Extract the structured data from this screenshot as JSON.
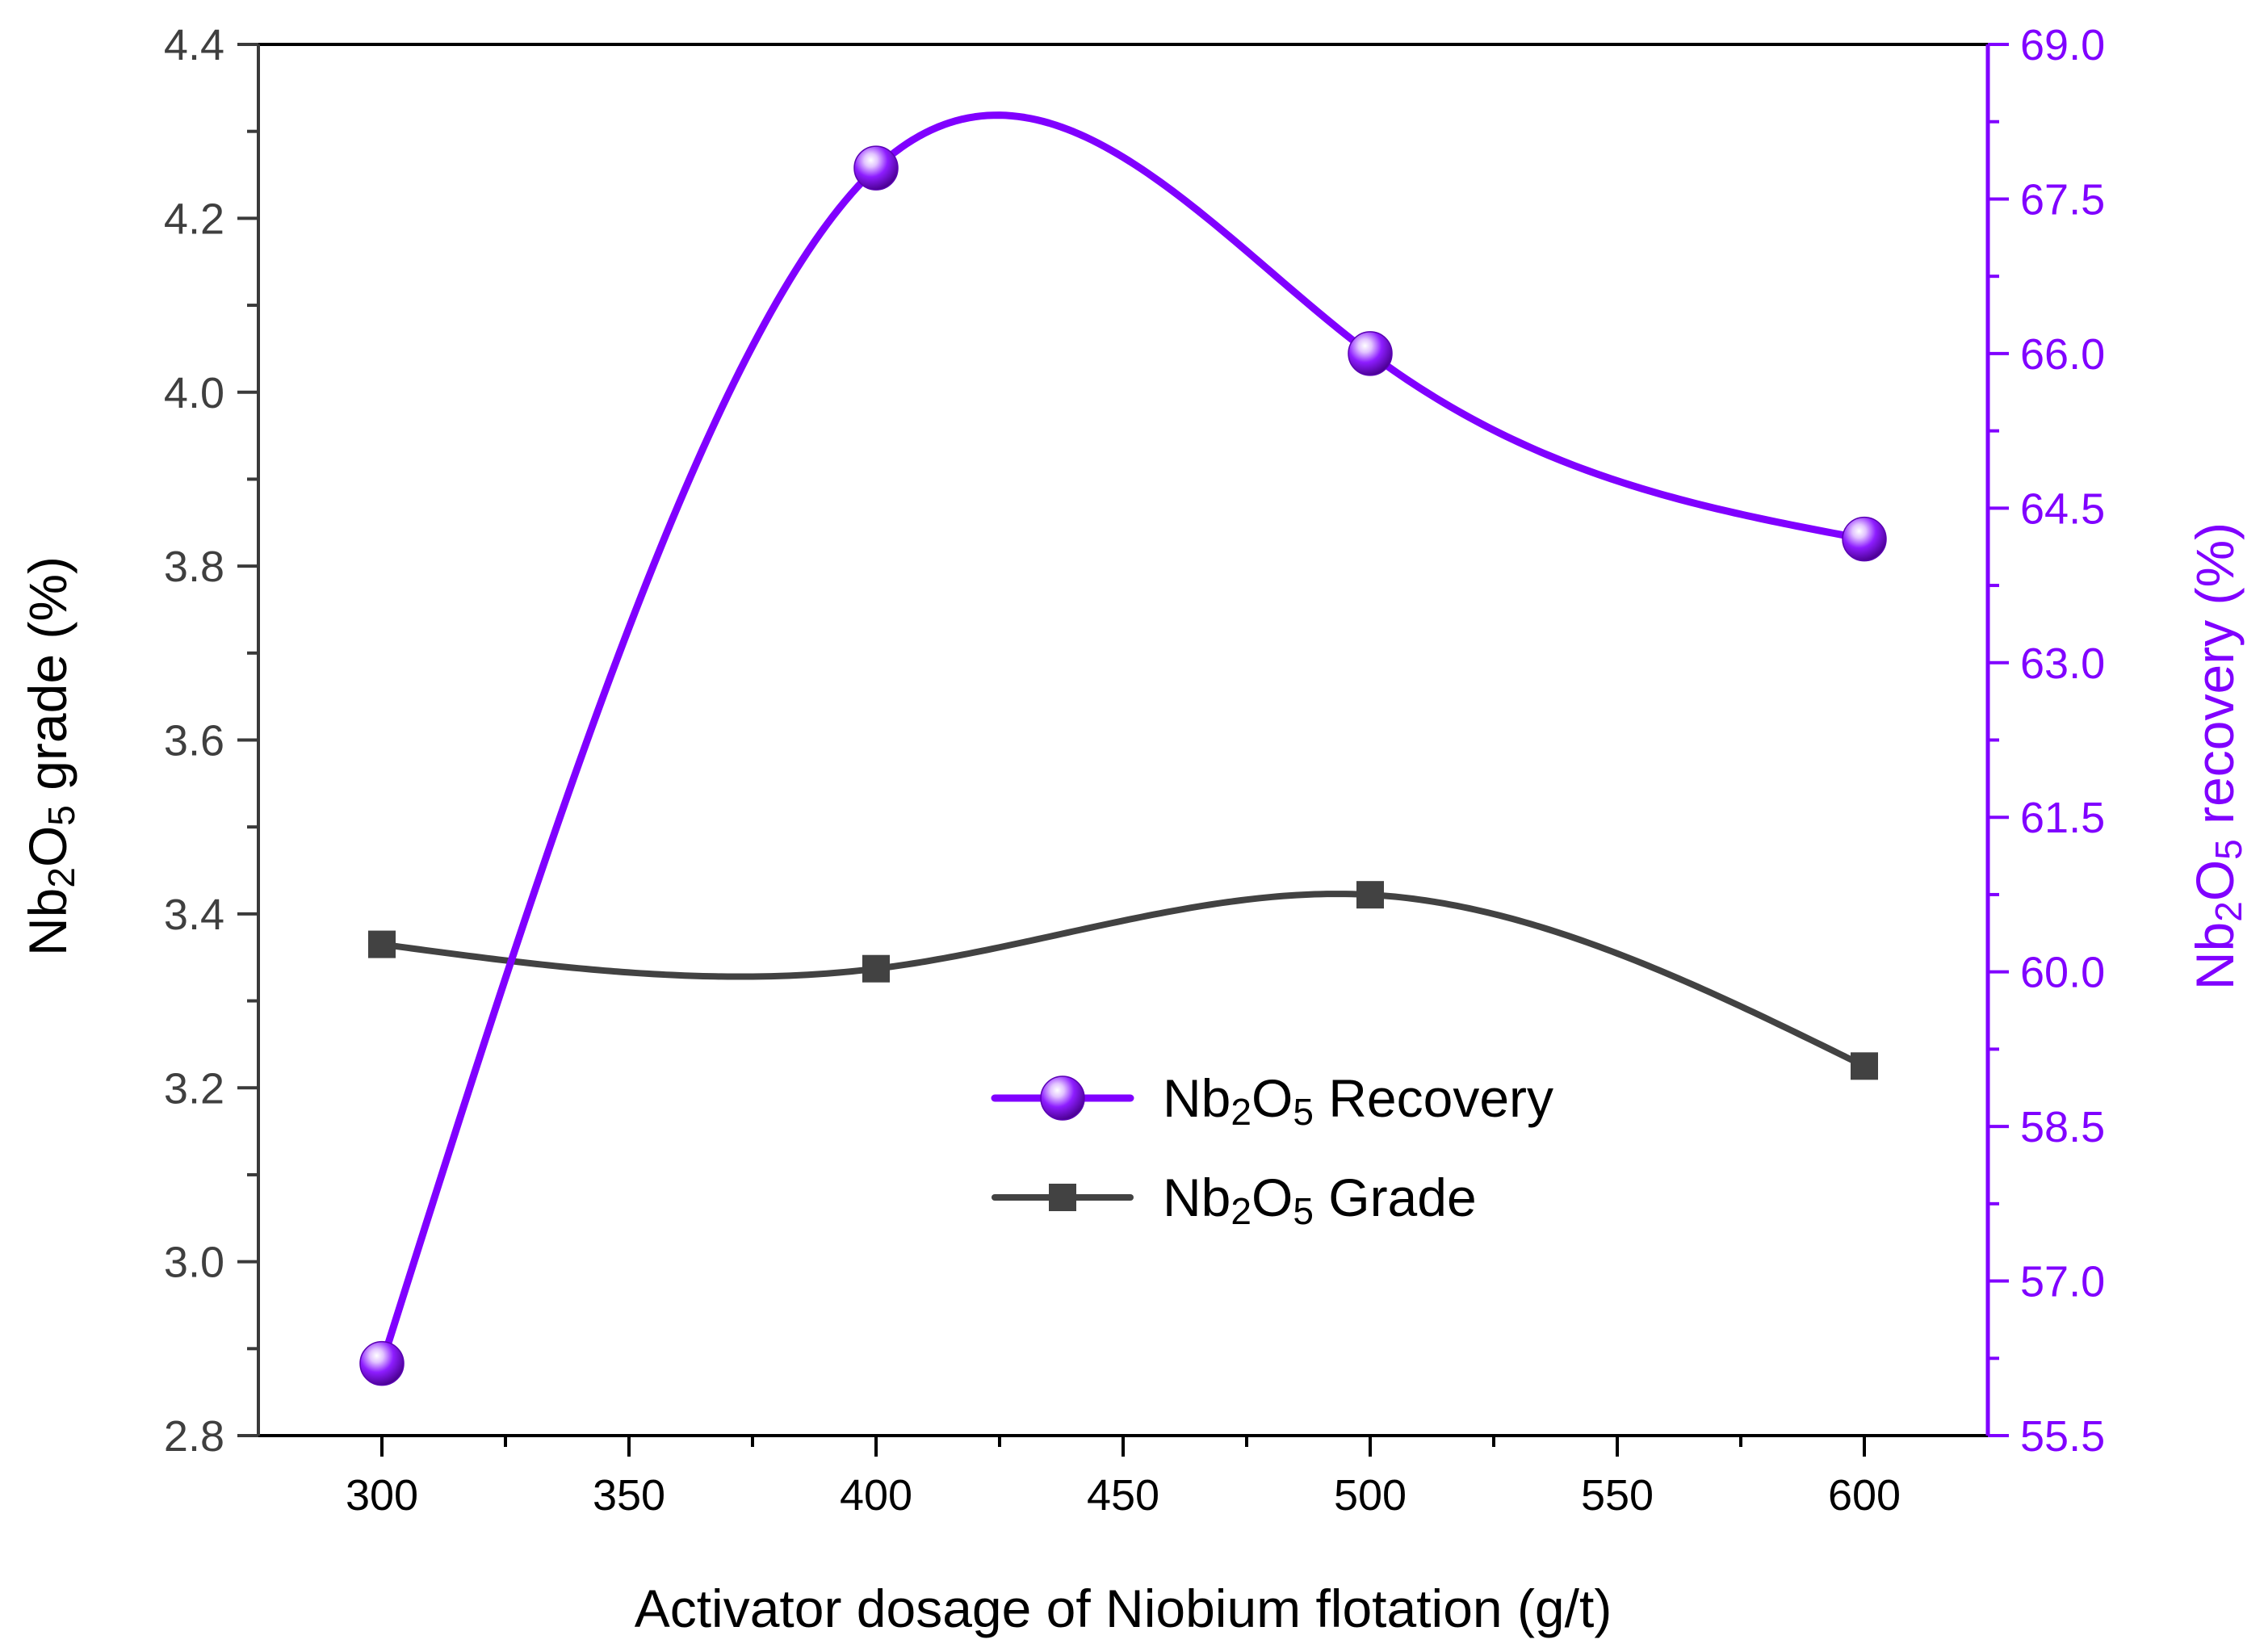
{
  "chart_data": {
    "type": "line",
    "title": "",
    "xlabel": "Activator dosage of Niobium flotation (g/t)",
    "ylabel_left": {
      "prefix": "Nb",
      "sub1": "2",
      "mid": "O",
      "sub2": "5",
      "suffix": " grade (%)"
    },
    "ylabel_right": {
      "prefix": "Nb",
      "sub1": "2",
      "mid": "O",
      "sub2": "5",
      "suffix": " recovery (%)"
    },
    "x": [
      300,
      400,
      500,
      600
    ],
    "xlim": [
      275,
      625
    ],
    "xticks": [
      "300",
      "350",
      "400",
      "450",
      "500",
      "550",
      "600"
    ],
    "ylim_left": [
      2.8,
      4.4
    ],
    "yticks_left": [
      "2.8",
      "3.0",
      "3.2",
      "3.4",
      "3.6",
      "3.8",
      "4.0",
      "4.2",
      "4.4"
    ],
    "ylim_right": [
      55.5,
      69.0
    ],
    "yticks_right": [
      "55.5",
      "57.0",
      "58.5",
      "60.0",
      "61.5",
      "63.0",
      "64.5",
      "66.0",
      "67.5",
      "69.0"
    ],
    "series": [
      {
        "name": "Nb2O5 Recovery",
        "legend": {
          "prefix": "Nb",
          "sub1": "2",
          "mid": "O",
          "sub2": "5",
          "suffix": " Recovery"
        },
        "axis": "right",
        "values": [
          56.2,
          67.8,
          66.0,
          64.2
        ],
        "color": "#8000ff",
        "marker": "sphere"
      },
      {
        "name": "Nb2O5 Grade",
        "legend": {
          "prefix": "Nb",
          "sub1": "2",
          "mid": "O",
          "sub2": "5",
          "suffix": " Grade"
        },
        "axis": "left",
        "values": [
          3.365,
          3.337,
          3.422,
          3.225
        ],
        "color": "#424242",
        "marker": "square"
      }
    ],
    "axis_colors": {
      "left": "#3a3a3a",
      "right": "#8000ff",
      "bottom": "#000000"
    },
    "grid": false,
    "legend_position": "center-right"
  }
}
